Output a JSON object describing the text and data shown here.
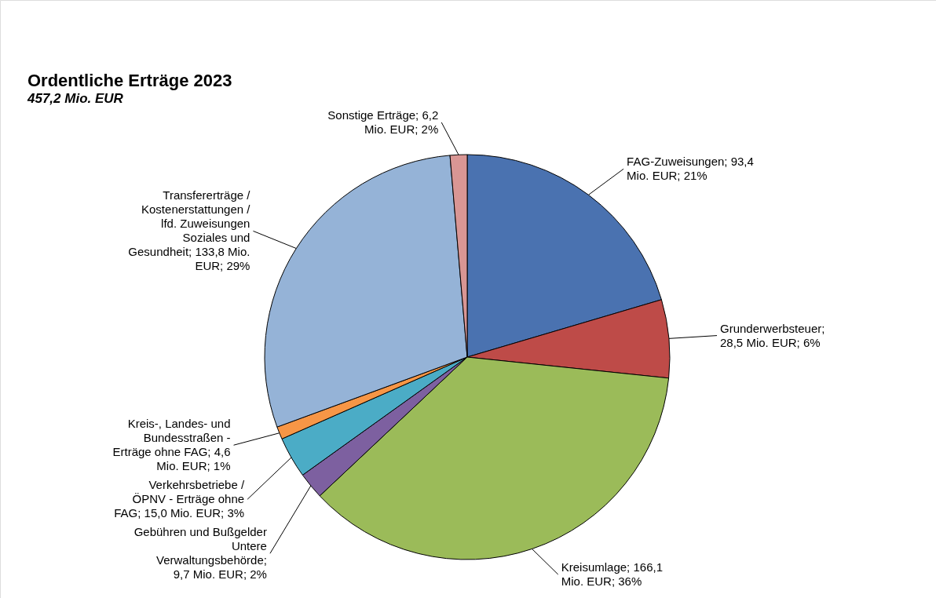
{
  "chart_data": {
    "type": "pie",
    "title": "Ordentliche Erträge 2023",
    "subtitle": "457,2 Mio. EUR",
    "categories": [
      "FAG-Zuweisungen; 93,4 Mio. EUR; 21%",
      "Grunderwerbsteuer; 28,5 Mio. EUR; 6%",
      "Kreisumlage; 166,1 Mio. EUR; 36%",
      "Gebühren und Bußgelder Untere Verwaltungsbehörde; 9,7 Mio. EUR; 2%",
      "Verkehrsbetriebe / ÖPNV - Erträge ohne FAG; 15,0 Mio. EUR; 3%",
      "Kreis-, Landes- und Bundesstraßen - Erträge ohne FAG; 4,6 Mio. EUR; 1%",
      "Transfererträge / Kostenerstattungen / lfd. Zuweisungen Soziales und Gesundheit; 133,8 Mio. EUR; 29%",
      "Sonstige Erträge; 6,2 Mio. EUR; 2%"
    ],
    "values": [
      93.4,
      28.5,
      166.1,
      9.7,
      15.0,
      4.6,
      133.8,
      6.2
    ],
    "colors": [
      "#4a72b0",
      "#be4b48",
      "#9bbb59",
      "#7d60a0",
      "#4bacc6",
      "#f79646",
      "#95b3d7",
      "#d99694"
    ],
    "legend": false
  }
}
